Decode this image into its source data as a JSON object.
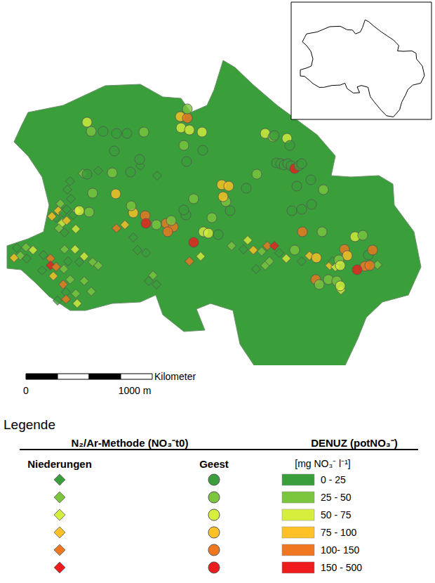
{
  "chart_data": {
    "type": "scatter",
    "tick_labels": false,
    "xlim": [
      0,
      620
    ],
    "ylim": [
      0,
      520
    ],
    "legend_title": "Legende",
    "method_title": "N₂/Ar-Methode (NO₃⁻t0)",
    "raster_title": "DENUZ (potNO₃⁻)",
    "unit": "[mg NO₃⁻ l⁻¹]",
    "scale_bar": {
      "title": "Kilometer",
      "labels": [
        "0",
        "1000 m"
      ]
    },
    "classes": [
      {
        "label": "0 - 25",
        "color": "#3a9e3a"
      },
      {
        "label": "25 - 50",
        "color": "#7cc63e"
      },
      {
        "label": "50 - 75",
        "color": "#d6ef3c"
      },
      {
        "label": "75 - 100",
        "color": "#ffc226"
      },
      {
        "label": "100- 150",
        "color": "#f0761f"
      },
      {
        "label": "150 - 500",
        "color": "#ee1c1c"
      }
    ],
    "series": [
      {
        "name": "Niederungen",
        "marker": "diamond",
        "points": [
          [
            86,
            290,
            1
          ],
          [
            83,
            300,
            3
          ],
          [
            90,
            303,
            0
          ],
          [
            95,
            298,
            0
          ],
          [
            80,
            310,
            0
          ],
          [
            88,
            318,
            2
          ],
          [
            95,
            314,
            3
          ],
          [
            104,
            306,
            0
          ],
          [
            84,
            325,
            1
          ],
          [
            110,
            300,
            2
          ],
          [
            101,
            283,
            0
          ],
          [
            96,
            270,
            0
          ],
          [
            100,
            258,
            0
          ],
          [
            118,
            247,
            1
          ],
          [
            140,
            243,
            0
          ],
          [
            74,
            308,
            3
          ],
          [
            92,
            331,
            0
          ],
          [
            108,
            326,
            2
          ],
          [
            24,
            353,
            0
          ],
          [
            37,
            352,
            1
          ],
          [
            47,
            356,
            2
          ],
          [
            29,
            364,
            1
          ],
          [
            20,
            367,
            3
          ],
          [
            38,
            368,
            0
          ],
          [
            62,
            363,
            0
          ],
          [
            72,
            368,
            4
          ],
          [
            72,
            378,
            5
          ],
          [
            80,
            380,
            4
          ],
          [
            60,
            385,
            0
          ],
          [
            76,
            393,
            3
          ],
          [
            91,
            383,
            1
          ],
          [
            97,
            372,
            0
          ],
          [
            113,
            373,
            0
          ],
          [
            120,
            365,
            2
          ],
          [
            107,
            355,
            2
          ],
          [
            92,
            355,
            1
          ],
          [
            132,
            373,
            1
          ],
          [
            140,
            378,
            1
          ],
          [
            120,
            400,
            1
          ],
          [
            100,
            398,
            1
          ],
          [
            90,
            405,
            4
          ],
          [
            94,
            416,
            0
          ],
          [
            108,
            418,
            1
          ],
          [
            94,
            426,
            4
          ],
          [
            82,
            428,
            0
          ],
          [
            110,
            432,
            2
          ],
          [
            130,
            415,
            1
          ],
          [
            212,
            400,
            0
          ],
          [
            223,
            405,
            0
          ],
          [
            218,
            392,
            1
          ],
          [
            166,
            325,
            4
          ],
          [
            178,
            320,
            3
          ],
          [
            190,
            338,
            0
          ],
          [
            196,
            356,
            0
          ],
          [
            208,
            360,
            0
          ],
          [
            330,
            350,
            1
          ],
          [
            347,
            355,
            0
          ],
          [
            353,
            342,
            2
          ],
          [
            361,
            356,
            3
          ],
          [
            373,
            358,
            1
          ],
          [
            381,
            350,
            4
          ],
          [
            391,
            350,
            5
          ],
          [
            398,
            360,
            0
          ],
          [
            365,
            383,
            0
          ],
          [
            378,
            378,
            1
          ],
          [
            384,
            372,
            1
          ],
          [
            408,
            368,
            2
          ],
          [
            430,
            372,
            0
          ],
          [
            441,
            364,
            3
          ],
          [
            470,
            378,
            3
          ],
          [
            478,
            380,
            2
          ],
          [
            486,
            413,
            2
          ],
          [
            474,
            372,
            0
          ],
          [
            538,
            377,
            1
          ],
          [
            286,
            365,
            2
          ],
          [
            270,
            372,
            4
          ],
          [
            200,
            236,
            0
          ],
          [
            224,
            250,
            0
          ]
        ]
      },
      {
        "name": "Geest",
        "marker": "circle",
        "points": [
          [
            124,
            174,
            2
          ],
          [
            130,
            187,
            1
          ],
          [
            147,
            187,
            0
          ],
          [
            166,
            190,
            0
          ],
          [
            181,
            190,
            0
          ],
          [
            205,
            188,
            1
          ],
          [
            163,
            215,
            0
          ],
          [
            124,
            248,
            0
          ],
          [
            160,
            246,
            1
          ],
          [
            186,
            245,
            0
          ],
          [
            199,
            227,
            0
          ],
          [
            257,
            166,
            3
          ],
          [
            267,
            168,
            4
          ],
          [
            258,
            182,
            2
          ],
          [
            270,
            185,
            2
          ],
          [
            262,
            207,
            1
          ],
          [
            288,
            188,
            2
          ],
          [
            266,
            230,
            0
          ],
          [
            289,
            214,
            0
          ],
          [
            267,
            155,
            1
          ],
          [
            207,
            307,
            4
          ],
          [
            208,
            318,
            5
          ],
          [
            223,
            320,
            1
          ],
          [
            237,
            318,
            4
          ],
          [
            247,
            323,
            4
          ],
          [
            244,
            314,
            1
          ],
          [
            265,
            306,
            0
          ],
          [
            239,
            330,
            4
          ],
          [
            276,
            345,
            5
          ],
          [
            290,
            330,
            2
          ],
          [
            297,
            332,
            2
          ],
          [
            302,
            310,
            1
          ],
          [
            311,
            334,
            0
          ],
          [
            262,
            299,
            0
          ],
          [
            276,
            283,
            1
          ],
          [
            190,
            303,
            3
          ],
          [
            187,
            293,
            1
          ],
          [
            132,
            275,
            1
          ],
          [
            127,
            302,
            1
          ],
          [
            113,
            300,
            2
          ],
          [
            165,
            276,
            3
          ],
          [
            378,
            190,
            2
          ],
          [
            389,
            195,
            1
          ],
          [
            391,
            193,
            0
          ],
          [
            409,
            197,
            2
          ],
          [
            413,
            207,
            0
          ],
          [
            394,
            232,
            0
          ],
          [
            400,
            233,
            0
          ],
          [
            405,
            235,
            0
          ],
          [
            410,
            233,
            0
          ],
          [
            415,
            236,
            0
          ],
          [
            420,
            240,
            5
          ],
          [
            426,
            236,
            0
          ],
          [
            430,
            233,
            0
          ],
          [
            423,
            265,
            0
          ],
          [
            443,
            256,
            0
          ],
          [
            444,
            291,
            0
          ],
          [
            461,
            270,
            1
          ],
          [
            416,
            300,
            0
          ],
          [
            430,
            298,
            0
          ],
          [
            431,
            330,
            4
          ],
          [
            459,
            330,
            1
          ],
          [
            420,
            356,
            1
          ],
          [
            451,
            367,
            3
          ],
          [
            506,
            337,
            2
          ],
          [
            517,
            335,
            1
          ],
          [
            491,
            355,
            4
          ],
          [
            495,
            364,
            3
          ],
          [
            525,
            363,
            0
          ],
          [
            520,
            379,
            4
          ],
          [
            509,
            384,
            5
          ],
          [
            527,
            378,
            4
          ],
          [
            531,
            356,
            4
          ],
          [
            483,
            370,
            1
          ],
          [
            485,
            378,
            2
          ],
          [
            450,
            398,
            4
          ],
          [
            455,
            405,
            1
          ],
          [
            468,
            398,
            1
          ],
          [
            480,
            400,
            1
          ],
          [
            485,
            407,
            2
          ],
          [
            322,
            287,
            1
          ],
          [
            318,
            280,
            3
          ],
          [
            351,
            268,
            0
          ],
          [
            328,
            300,
            0
          ],
          [
            366,
            248,
            1
          ],
          [
            316,
            263,
            3
          ],
          [
            326,
            265,
            3
          ]
        ]
      }
    ]
  }
}
